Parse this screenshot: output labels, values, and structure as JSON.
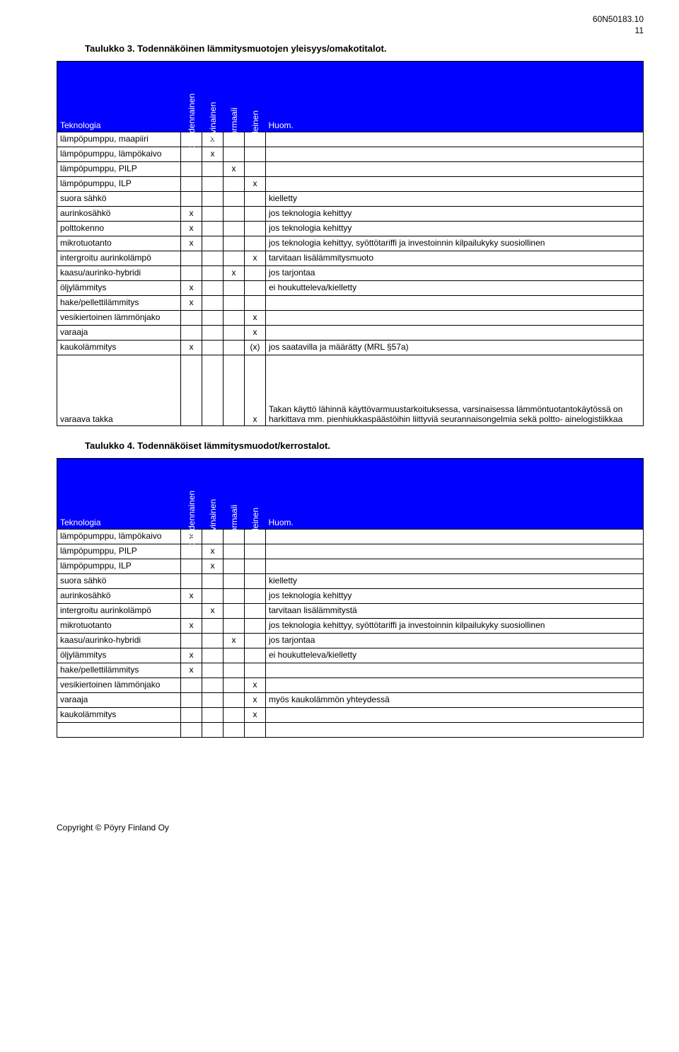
{
  "doc_id": "60N50183.10",
  "page_no": "11",
  "footer": "Copyright © Pöyry Finland Oy",
  "rot_headers": [
    "epätodennainen",
    "harvinainen",
    "normaali",
    "yleinen"
  ],
  "col_first": "Teknologia",
  "col_last": "Huom.",
  "table3": {
    "caption": "Taulukko 3. Todennäköinen lämmitysmuotojen yleisyys/omakotitalot.",
    "rows": [
      {
        "label": "lämpöpumppu, maapiiri",
        "c": [
          "",
          "x",
          "",
          ""
        ],
        "note": ""
      },
      {
        "label": "lämpöpumppu, lämpökaivo",
        "c": [
          "",
          "x",
          "",
          ""
        ],
        "note": ""
      },
      {
        "label": "lämpöpumppu, PILP",
        "c": [
          "",
          "",
          "x",
          ""
        ],
        "note": ""
      },
      {
        "label": "lämpöpumppu, ILP",
        "c": [
          "",
          "",
          "",
          "x"
        ],
        "note": ""
      },
      {
        "label": "suora sähkö",
        "c": [
          "",
          "",
          "",
          ""
        ],
        "note": "kielletty"
      },
      {
        "label": "aurinkosähkö",
        "c": [
          "x",
          "",
          "",
          ""
        ],
        "note": "jos teknologia kehittyy"
      },
      {
        "label": "polttokenno",
        "c": [
          "x",
          "",
          "",
          ""
        ],
        "note": "jos teknologia kehittyy"
      },
      {
        "label": "mikrotuotanto",
        "c": [
          "x",
          "",
          "",
          ""
        ],
        "note": "jos teknologia kehittyy, syöttötariffi ja investoinnin kilpailukyky suosiollinen"
      },
      {
        "label": "intergroitu aurinkolämpö",
        "c": [
          "",
          "",
          "",
          "x"
        ],
        "note": "tarvitaan lisälämmitysmuoto"
      },
      {
        "label": "kaasu/aurinko-hybridi",
        "c": [
          "",
          "",
          "x",
          ""
        ],
        "note": "jos tarjontaa"
      },
      {
        "label": "öljylämmitys",
        "c": [
          "x",
          "",
          "",
          ""
        ],
        "note": "ei houkutteleva/kielletty"
      },
      {
        "label": "hake/pellettilämmitys",
        "c": [
          "x",
          "",
          "",
          ""
        ],
        "note": ""
      },
      {
        "label": "vesikiertoinen lämmönjako",
        "c": [
          "",
          "",
          "",
          "x"
        ],
        "note": ""
      },
      {
        "label": "varaaja",
        "c": [
          "",
          "",
          "",
          "x"
        ],
        "note": ""
      },
      {
        "label": "kaukolämmitys",
        "c": [
          "x",
          "",
          "",
          "(x)"
        ],
        "note": "jos saatavilla ja määrätty (MRL §57a)"
      }
    ],
    "tall_row": {
      "label": "varaava takka",
      "c": [
        "",
        "",
        "",
        "x"
      ],
      "note": "Takan käyttö lähinnä käyttövarmuustarkoituksessa, varsinaisessa lämmöntuotantokäytössä on harkittava mm. pienhiukkaspäästöihin liittyviä seurannaisongelmia sekä poltto- ainelogistiikkaa"
    }
  },
  "table4": {
    "caption": "Taulukko 4. Todennäköiset lämmitysmuodot/kerrostalot.",
    "rows": [
      {
        "label": "lämpöpumppu, lämpökaivo",
        "c": [
          "x",
          "",
          "",
          ""
        ],
        "note": ""
      },
      {
        "label": "lämpöpumppu, PILP",
        "c": [
          "",
          "x",
          "",
          ""
        ],
        "note": ""
      },
      {
        "label": "lämpöpumppu, ILP",
        "c": [
          "",
          "x",
          "",
          ""
        ],
        "note": ""
      },
      {
        "label": "suora sähkö",
        "c": [
          "",
          "",
          "",
          ""
        ],
        "note": "kielletty"
      },
      {
        "label": "aurinkosähkö",
        "c": [
          "x",
          "",
          "",
          ""
        ],
        "note": "jos teknologia kehittyy"
      },
      {
        "label": "intergroitu aurinkolämpö",
        "c": [
          "",
          "x",
          "",
          ""
        ],
        "note": "tarvitaan lisälämmitystä"
      },
      {
        "label": "mikrotuotanto",
        "c": [
          "x",
          "",
          "",
          ""
        ],
        "note": "jos teknologia kehittyy, syöttötariffi ja investoinnin kilpailukyky suosiollinen"
      },
      {
        "label": "kaasu/aurinko-hybridi",
        "c": [
          "",
          "",
          "x",
          ""
        ],
        "note": "jos tarjontaa"
      },
      {
        "label": "öljylämmitys",
        "c": [
          "x",
          "",
          "",
          ""
        ],
        "note": "ei houkutteleva/kielletty"
      },
      {
        "label": "hake/pellettilämmitys",
        "c": [
          "x",
          "",
          "",
          ""
        ],
        "note": ""
      },
      {
        "label": "vesikiertoinen lämmönjako",
        "c": [
          "",
          "",
          "",
          "x"
        ],
        "note": ""
      },
      {
        "label": "varaaja",
        "c": [
          "",
          "",
          "",
          "x"
        ],
        "note": "myös kaukolämmön yhteydessä"
      },
      {
        "label": "kaukolämmitys",
        "c": [
          "",
          "",
          "",
          "x"
        ],
        "note": ""
      },
      {
        "label": "",
        "c": [
          "",
          "",
          "",
          ""
        ],
        "note": ""
      }
    ]
  }
}
